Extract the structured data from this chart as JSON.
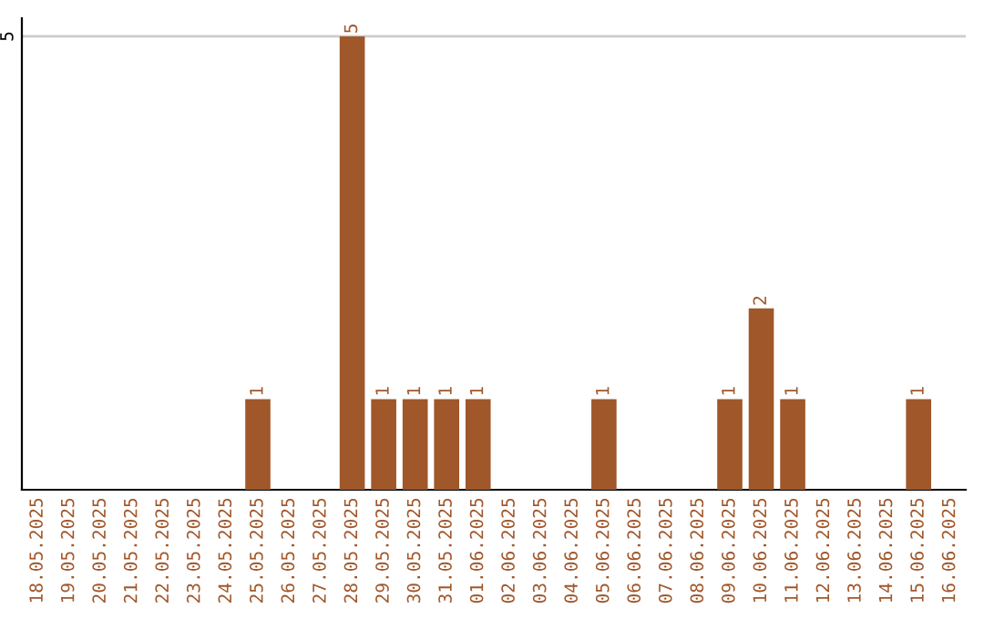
{
  "chart_data": {
    "type": "bar",
    "categories": [
      "18.05.2025",
      "19.05.2025",
      "20.05.2025",
      "21.05.2025",
      "22.05.2025",
      "23.05.2025",
      "24.05.2025",
      "25.05.2025",
      "26.05.2025",
      "27.05.2025",
      "28.05.2025",
      "29.05.2025",
      "30.05.2025",
      "31.05.2025",
      "01.06.2025",
      "02.06.2025",
      "03.06.2025",
      "04.06.2025",
      "05.06.2025",
      "06.06.2025",
      "07.06.2025",
      "08.06.2025",
      "09.06.2025",
      "10.06.2025",
      "11.06.2025",
      "12.06.2025",
      "13.06.2025",
      "14.06.2025",
      "15.06.2025",
      "16.06.2025"
    ],
    "values": [
      0,
      0,
      0,
      0,
      0,
      0,
      0,
      1,
      0,
      0,
      5,
      1,
      1,
      1,
      1,
      0,
      0,
      0,
      1,
      0,
      0,
      0,
      1,
      2,
      1,
      0,
      0,
      0,
      1,
      0
    ],
    "value_labels": [
      null,
      null,
      null,
      null,
      null,
      null,
      null,
      "1",
      null,
      null,
      "5",
      "1",
      "1",
      "1",
      "1",
      null,
      null,
      null,
      "1",
      null,
      null,
      null,
      "1",
      "2",
      "1",
      null,
      null,
      null,
      "1",
      null
    ],
    "color": "#a0572a",
    "ylim": [
      0,
      5.2
    ],
    "yticks": [
      5
    ],
    "grid": "y"
  }
}
